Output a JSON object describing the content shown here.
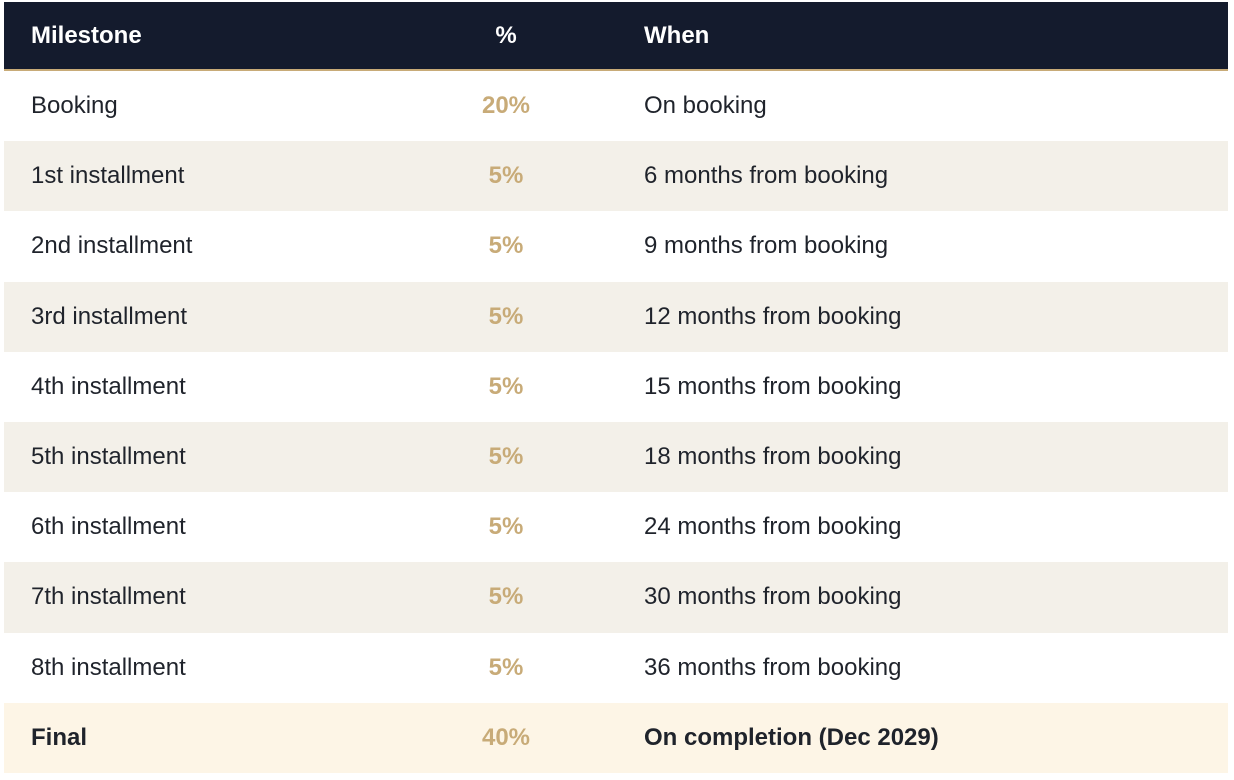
{
  "table": {
    "header": [
      "Milestone",
      "%",
      "When"
    ],
    "rows": [
      [
        "Booking",
        "20%",
        "On booking"
      ],
      [
        "1st installment",
        "5%",
        "6 months from booking"
      ],
      [
        "2nd installment",
        "5%",
        "9 months from booking"
      ],
      [
        "3rd installment",
        "5%",
        "12 months from booking"
      ],
      [
        "4th installment",
        "5%",
        "15 months from booking"
      ],
      [
        "5th installment",
        "5%",
        "18 months from booking"
      ],
      [
        "6th installment",
        "5%",
        "24 months from booking"
      ],
      [
        "7th installment",
        "5%",
        "30 months from booking"
      ],
      [
        "8th installment",
        "5%",
        "36 months from booking"
      ],
      [
        "Final",
        "40%",
        "On completion (Dec 2029)"
      ]
    ]
  }
}
